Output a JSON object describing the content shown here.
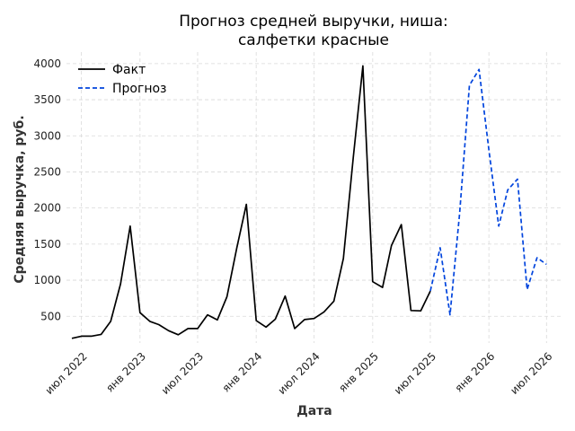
{
  "chart_data": {
    "type": "line",
    "title_line1": "Прогноз средней выручки, ниша:",
    "title_line2": "салфетки красные",
    "xlabel": "Дата",
    "ylabel": "Средняя выручка, руб.",
    "ylim": [
      130,
      4160
    ],
    "yticks": [
      500,
      1000,
      1500,
      2000,
      2500,
      3000,
      3500,
      4000
    ],
    "xlim": [
      "2022-05-15",
      "2026-08-20"
    ],
    "xticks": [
      {
        "date": "2022-07-01",
        "label": "июл 2022"
      },
      {
        "date": "2023-01-01",
        "label": "янв 2023"
      },
      {
        "date": "2023-07-01",
        "label": "июл 2023"
      },
      {
        "date": "2024-01-01",
        "label": "янв 2024"
      },
      {
        "date": "2024-07-01",
        "label": "июл 2024"
      },
      {
        "date": "2025-01-01",
        "label": "янв 2025"
      },
      {
        "date": "2025-07-01",
        "label": "июл 2025"
      },
      {
        "date": "2026-01-01",
        "label": "янв 2026"
      },
      {
        "date": "2026-07-01",
        "label": "июл 2026"
      }
    ],
    "grid": true,
    "legend_position": "top-left",
    "series": [
      {
        "name": "Факт",
        "color": "#000000",
        "dashed": false,
        "points": [
          [
            "2022-06-01",
            195
          ],
          [
            "2022-07-01",
            225
          ],
          [
            "2022-08-01",
            225
          ],
          [
            "2022-09-01",
            250
          ],
          [
            "2022-10-01",
            430
          ],
          [
            "2022-11-01",
            950
          ],
          [
            "2022-12-01",
            1750
          ],
          [
            "2023-01-01",
            550
          ],
          [
            "2023-02-01",
            430
          ],
          [
            "2023-03-01",
            385
          ],
          [
            "2023-04-01",
            300
          ],
          [
            "2023-05-01",
            245
          ],
          [
            "2023-06-01",
            330
          ],
          [
            "2023-07-01",
            330
          ],
          [
            "2023-08-01",
            520
          ],
          [
            "2023-09-01",
            450
          ],
          [
            "2023-10-01",
            770
          ],
          [
            "2023-11-01",
            1450
          ],
          [
            "2023-12-01",
            2050
          ],
          [
            "2024-01-01",
            440
          ],
          [
            "2024-02-01",
            350
          ],
          [
            "2024-03-01",
            460
          ],
          [
            "2024-04-01",
            780
          ],
          [
            "2024-05-01",
            330
          ],
          [
            "2024-06-01",
            455
          ],
          [
            "2024-07-01",
            470
          ],
          [
            "2024-08-01",
            560
          ],
          [
            "2024-09-01",
            710
          ],
          [
            "2024-10-01",
            1300
          ],
          [
            "2024-11-01",
            2700
          ],
          [
            "2024-12-01",
            3970
          ],
          [
            "2025-01-01",
            980
          ],
          [
            "2025-02-01",
            900
          ],
          [
            "2025-03-01",
            1480
          ],
          [
            "2025-04-01",
            1770
          ],
          [
            "2025-05-01",
            580
          ],
          [
            "2025-06-01",
            575
          ],
          [
            "2025-07-01",
            850
          ]
        ]
      },
      {
        "name": "Прогноз",
        "color": "#0044dd",
        "dashed": true,
        "points": [
          [
            "2025-07-01",
            850
          ],
          [
            "2025-08-01",
            1450
          ],
          [
            "2025-09-01",
            520
          ],
          [
            "2025-10-01",
            1930
          ],
          [
            "2025-11-01",
            3700
          ],
          [
            "2025-12-01",
            3920
          ],
          [
            "2026-01-01",
            2800
          ],
          [
            "2026-02-01",
            1750
          ],
          [
            "2026-03-01",
            2250
          ],
          [
            "2026-04-01",
            2400
          ],
          [
            "2026-05-01",
            870
          ],
          [
            "2026-06-01",
            1310
          ],
          [
            "2026-07-01",
            1220
          ]
        ]
      }
    ]
  }
}
